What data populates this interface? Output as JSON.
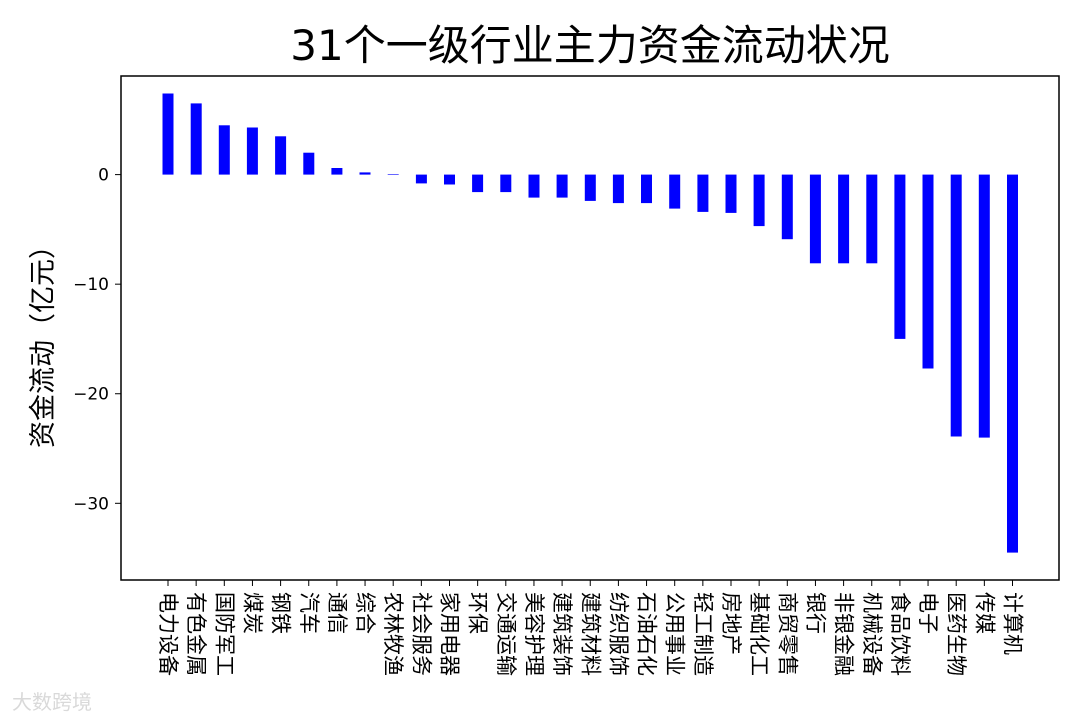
{
  "chart_data": {
    "type": "bar",
    "title": "31个一级行业主力资金流动状况",
    "xlabel": "",
    "ylabel": "资金流动（亿元）",
    "ylim": [
      -37,
      9
    ],
    "yticks": [
      0,
      -10,
      -20,
      -30
    ],
    "bar_color": "#0000ff",
    "categories": [
      "电力设备",
      "有色金属",
      "国防军工",
      "煤炭",
      "钢铁",
      "汽车",
      "通信",
      "综合",
      "农林牧渔",
      "社会服务",
      "家用电器",
      "环保",
      "交通运输",
      "美容护理",
      "建筑装饰",
      "建筑材料",
      "纺织服饰",
      "石油石化",
      "公用事业",
      "轻工制造",
      "房地产",
      "基础化工",
      "商贸零售",
      "银行",
      "非银金融",
      "机械设备",
      "食品饮料",
      "电子",
      "医药生物",
      "传媒",
      "计算机"
    ],
    "values": [
      7.4,
      6.5,
      4.5,
      4.3,
      3.5,
      2.0,
      0.6,
      0.2,
      0.05,
      -0.8,
      -0.9,
      -1.6,
      -1.6,
      -2.1,
      -2.1,
      -2.4,
      -2.6,
      -2.6,
      -3.1,
      -3.4,
      -3.5,
      -4.7,
      -5.9,
      -8.1,
      -8.1,
      -8.1,
      -15.0,
      -17.7,
      -23.9,
      -24.0,
      -34.5
    ]
  },
  "watermark": "大数跨境"
}
